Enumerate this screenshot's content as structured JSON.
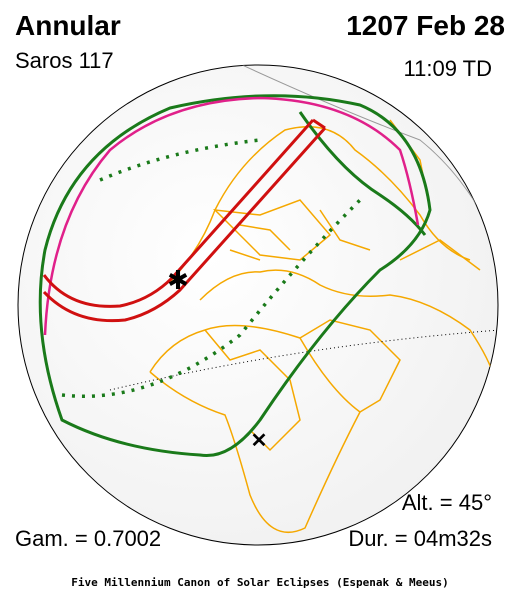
{
  "header": {
    "type": "Annular",
    "date": "1207 Feb 28",
    "saros": "Saros 117",
    "time": "11:09 TD"
  },
  "footer_stats": {
    "altitude": "Alt. = 45°",
    "gamma": "Gam. = 0.7002",
    "duration": "Dur. = 04m32s"
  },
  "caption": "Five Millennium Canon of Solar Eclipses (Espenak & Meeus)"
}
